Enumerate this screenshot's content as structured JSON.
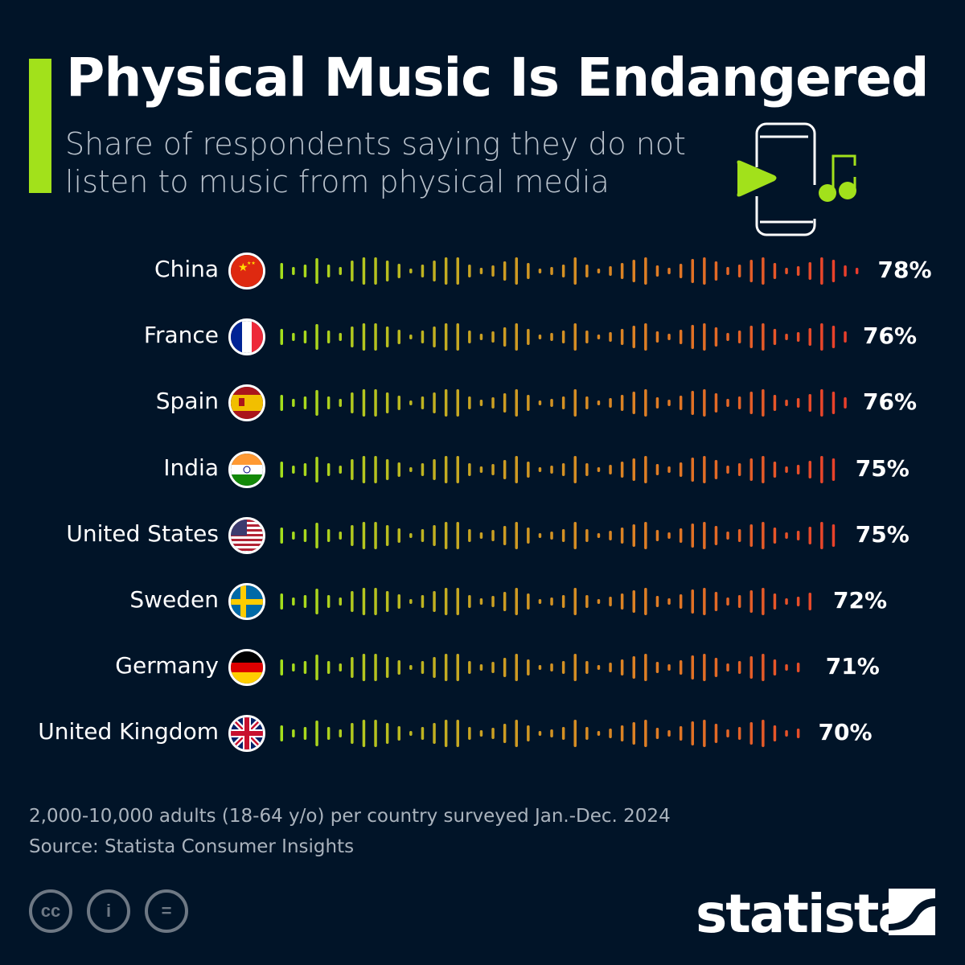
{
  "header": {
    "title": "Physical Music Is Endangered",
    "subtitle": "Share of respondents saying they do not listen to music from physical media"
  },
  "chart_data": {
    "type": "bar",
    "title": "Physical Music Is Endangered",
    "subtitle": "Share of respondents saying they do not listen to music from physical media",
    "categories": [
      "China",
      "France",
      "Spain",
      "India",
      "United States",
      "Sweden",
      "Germany",
      "United Kingdom"
    ],
    "values": [
      78,
      76,
      76,
      75,
      75,
      72,
      71,
      70
    ],
    "value_labels": [
      "78%",
      "76%",
      "76%",
      "75%",
      "75%",
      "72%",
      "71%",
      "70%"
    ],
    "unit": "%",
    "colors": {
      "start": "#a4e01c",
      "mid": "#c9a322",
      "late": "#e07a24",
      "end": "#ea3a2c"
    }
  },
  "footer": {
    "note": "2,000-10,000 adults (18-64 y/o) per country surveyed Jan.-Dec. 2024",
    "source": "Source: Statista Consumer Insights",
    "brand": "statista",
    "license_icons": [
      "cc",
      "by",
      "nd"
    ]
  }
}
